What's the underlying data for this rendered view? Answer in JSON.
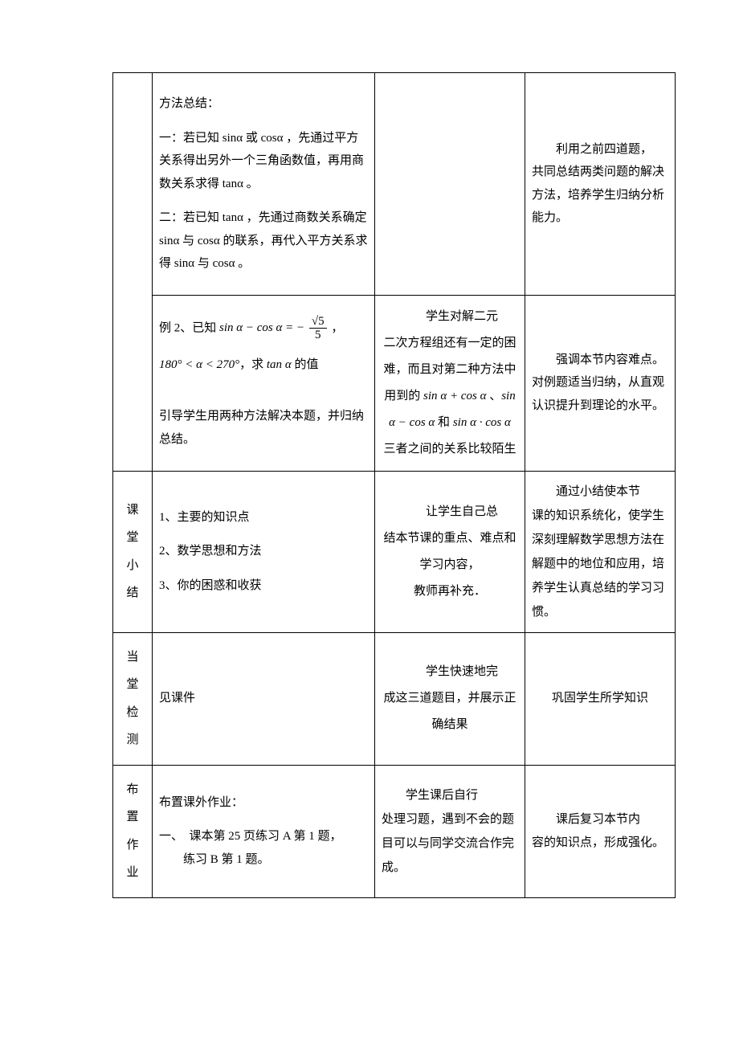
{
  "rows": [
    {
      "content_html": "<div class='para'>方法总结：</div><div class='para'>一：若已知 sinα 或 cosα ，先通过平方关系得出另外一个三角函数值，再用商数关系求得 tanα 。</div><div class='para'>二：若已知 tanα ，先通过商数关系确定 sinα 与 cosα 的联系，再代入平方关系求得 sinα 与 cosα 。</div>",
      "student_html": "",
      "note_html": "<span class='indent'>利用之前四道题，</span>共同总结两类问题的解决方法，培养学生归纳分析能力。"
    },
    {
      "content_html": "<div class='para'>例 2、已知 <span class='formula'>sin <span style='font-style:italic;'>α</span> − cos <span style='font-style:italic;'>α</span> = − <span class='frac'><span class='num'>√5</span><span class='den'>5</span></span></span> ，</div><div class='para'><span class='formula'>180° &lt; <span style='font-style:italic;'>α</span> &lt; 270°</span>，求 <span class='formula'>tan <span style='font-style:italic;'>α</span></span> 的值</div><div class='para' style='margin-top:36px;'>引导学生用两种方法解决本题，并归纳总结。</div>",
      "student_html": "<div style='line-height:2.2;'><span class='indent'>学生对解二元</span>二次方程组还有一定的困难，而且对第二种方法中用到的 <span class='formula'>sin <span style='font-style:italic;'>α</span> + cos <span style='font-style:italic;'>α</span></span> 、<span class='formula'>sin <span style='font-style:italic;'>α</span> − cos <span style='font-style:italic;'>α</span></span> 和 <span class='formula'>sin <span style='font-style:italic;'>α</span> · cos <span style='font-style:italic;'>α</span></span> 三者之间的关系比较陌生</div>",
      "note_html": "<span class='indent'>强调本节内容难点。</span>对例题适当归纳，从直观认识提升到理论的水平。"
    },
    {
      "label": "课堂小结",
      "content_html": "<div class='para'>1、主要的知识点</div><div class='para'>2、数学思想和方法</div><div class='para'>3、你的困惑和收获</div>",
      "student_html": "<div style='text-align:center;line-height:2.2;'><span class='indent'>让学生自己总</span>结本节课的重点、难点和学习内容，<br>教师再补充．</div>",
      "note_html": "<div style='line-height:2.0;'><span class='indent'>通过小结使本节</span>课的知识系统化，使学生深刻理解数学思想方法在解题中的地位和应用，培养学生认真总结的学习习惯。</div>"
    },
    {
      "label": "当堂检测",
      "content_html": "<div class='para'>见课件</div>",
      "student_html": "<div style='text-align:center;line-height:2.2;'><span class='indent'>学生快速地完</span>成这三道题目，并展示正确结果</div>",
      "note_html": "<div style='text-align:center;line-height:2.2;'>巩固学生所学知识</div>"
    },
    {
      "label": "布置作业",
      "content_html": "<div class='para'>布置课外作业：</div><div class='para'>一、&nbsp;&nbsp;课本第 25 页练习 A 第 1 题，<br>&nbsp;&nbsp;&nbsp;&nbsp;&nbsp;&nbsp;&nbsp;&nbsp;练习 B 第 1 题。</div>",
      "student_html": "<div style='line-height:2.0;'><span class='indent'>学生课后自行</span>处理习题，遇到不会的题目可以与同学交流合作完成。</div>",
      "note_html": "<span class='indent'>课后复习本节内</span>容的知识点，形成强化。"
    }
  ]
}
